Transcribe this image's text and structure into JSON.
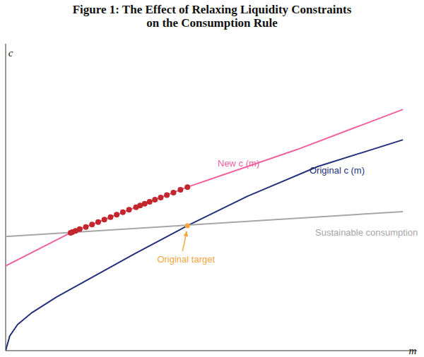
{
  "chart_data": {
    "type": "line",
    "title": [
      "Figure 1: The Effect of Relaxing Liquidity Constraints",
      "on the Consumption Rule"
    ],
    "x_label": "m",
    "y_label": "c",
    "xlim": [
      0,
      10
    ],
    "ylim": [
      0,
      10
    ],
    "xticks": [],
    "yticks": [],
    "tick_labels": false,
    "grid": false,
    "series": [
      {
        "name": "New c (m)",
        "type": "line",
        "color": "#f0609f",
        "line_style": "solid",
        "x": [
          0,
          1.58,
          4.42,
          7.08,
          9.66
        ],
        "values": [
          2.76,
          3.84,
          5.33,
          6.55,
          7.86
        ]
      },
      {
        "name": "Original c (m)",
        "type": "line",
        "color": "#24307a",
        "line_style": "solid",
        "x": [
          0,
          0.1,
          0.29,
          0.64,
          1.24,
          2.1,
          3.13,
          4.42,
          5.88,
          7.59,
          9.66
        ],
        "values": [
          0,
          0.48,
          0.85,
          1.24,
          1.75,
          2.39,
          3.15,
          4.07,
          5.03,
          6.0,
          6.87
        ]
      },
      {
        "name": "Sustainable consumption",
        "type": "line",
        "color": "#a6a6a6",
        "line_style": "solid",
        "x": [
          0,
          9.66
        ],
        "values": [
          3.72,
          4.53
        ]
      },
      {
        "type": "scatter",
        "color": "#c1272d",
        "marker": "circle",
        "x": [
          4.42,
          4.25,
          4.08,
          3.92,
          3.77,
          3.63,
          3.5,
          3.38,
          3.27,
          3.17,
          3.0,
          2.85,
          2.7,
          2.55,
          2.4,
          2.25,
          2.1,
          1.95,
          1.8,
          1.7,
          1.62,
          1.58
        ],
        "values": [
          5.33,
          5.24,
          5.15,
          5.07,
          4.99,
          4.92,
          4.85,
          4.79,
          4.73,
          4.67,
          4.59,
          4.51,
          4.43,
          4.35,
          4.27,
          4.19,
          4.11,
          4.03,
          3.96,
          3.9,
          3.86,
          3.84
        ]
      }
    ],
    "annotations": [
      {
        "text": "Original target",
        "x": 4.42,
        "y": 4.07,
        "color": "#f5a63c",
        "marker": "circle"
      }
    ]
  }
}
